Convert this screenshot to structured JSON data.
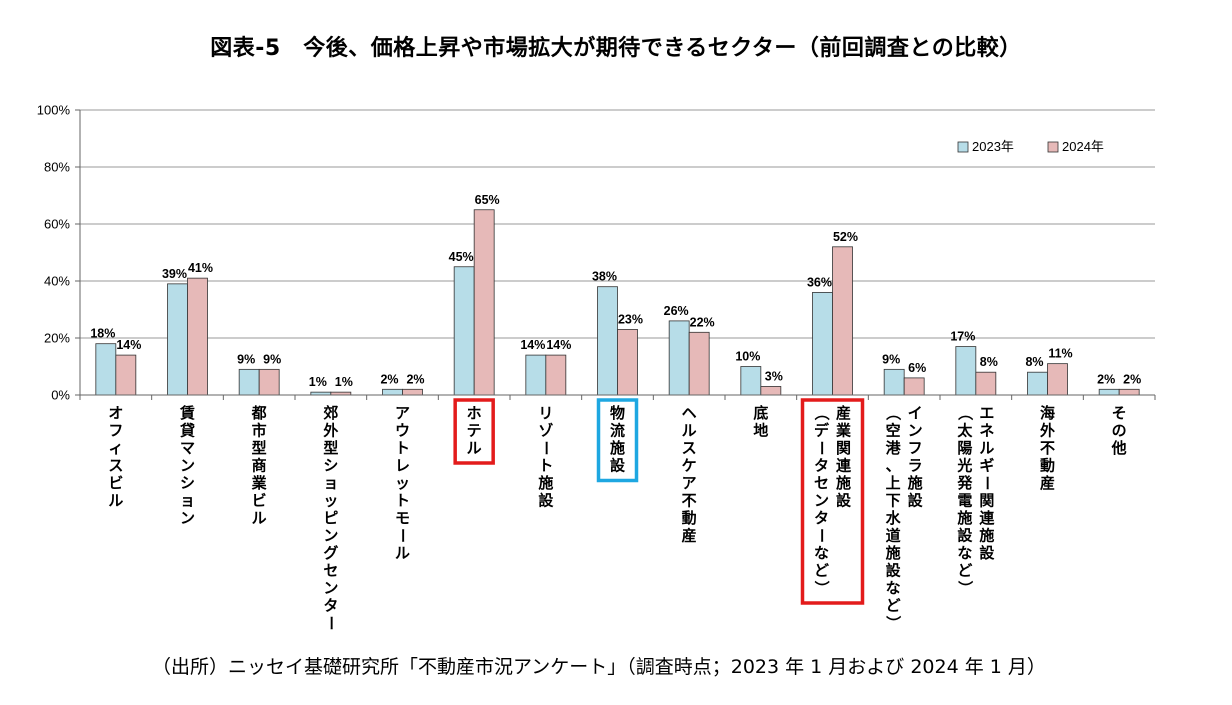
{
  "title": "図表-5　今後、価格上昇や市場拡大が期待できるセクター（前回調査との比較）",
  "source": "（出所）ニッセイ基礎研究所「不動産市況アンケート」（調査時点；2023 年 1 月および 2024 年 1 月）",
  "colors": {
    "series_2023": "#b7dde8",
    "series_2024": "#e6b9b8",
    "bar_stroke": "#333333",
    "highlight_red": "#e31b1b",
    "highlight_blue": "#1ea7e1",
    "grid": "#9a9a9a"
  },
  "chart_data": {
    "type": "bar",
    "title": "図表-5　今後、価格上昇や市場拡大が期待できるセクター（前回調査との比較）",
    "categories": [
      {
        "lines": [
          "オフィスビル"
        ]
      },
      {
        "lines": [
          "賃貸マンション"
        ]
      },
      {
        "lines": [
          "都市型商業ビル"
        ]
      },
      {
        "lines": [
          "郊外型ショッピングセンター"
        ]
      },
      {
        "lines": [
          "アウトレットモール"
        ]
      },
      {
        "lines": [
          "ホテル"
        ],
        "highlight": "red"
      },
      {
        "lines": [
          "リゾート施設"
        ]
      },
      {
        "lines": [
          "物流施設"
        ],
        "highlight": "blue"
      },
      {
        "lines": [
          "ヘルスケア不動産"
        ]
      },
      {
        "lines": [
          "底地"
        ]
      },
      {
        "lines": [
          "産業関連施設",
          "（データセンターなど）"
        ],
        "highlight": "red"
      },
      {
        "lines": [
          "インフラ施設",
          "（空港、上下水道施設など）"
        ]
      },
      {
        "lines": [
          "エネルギー関連施設",
          "（太陽光発電施設など）"
        ]
      },
      {
        "lines": [
          "海外不動産"
        ]
      },
      {
        "lines": [
          "その他"
        ]
      }
    ],
    "series": [
      {
        "name": "2023年",
        "values": [
          18,
          39,
          9,
          1,
          2,
          45,
          14,
          38,
          26,
          10,
          36,
          9,
          17,
          8,
          2
        ]
      },
      {
        "name": "2024年",
        "values": [
          14,
          41,
          9,
          1,
          2,
          65,
          14,
          23,
          22,
          3,
          52,
          6,
          8,
          11,
          2
        ]
      }
    ],
    "data_labels": {
      "2023年": [
        "18%",
        "39%",
        "9%",
        "1%",
        "2%",
        "45%",
        "14%",
        "38%",
        "26%",
        "10%",
        "36%",
        "9%",
        "17%",
        "8%",
        "2%"
      ],
      "2024年": [
        "14%",
        "41%",
        "9%",
        "1%",
        "2%",
        "65%",
        "14%",
        "23%",
        "22%",
        "3%",
        "52%",
        "6%",
        "8%",
        "11%",
        "2%"
      ]
    },
    "y_ticks": [
      "0%",
      "20%",
      "40%",
      "60%",
      "80%",
      "100%"
    ],
    "ylim": [
      0,
      100
    ],
    "grid": true,
    "legend_position": "top-right"
  }
}
